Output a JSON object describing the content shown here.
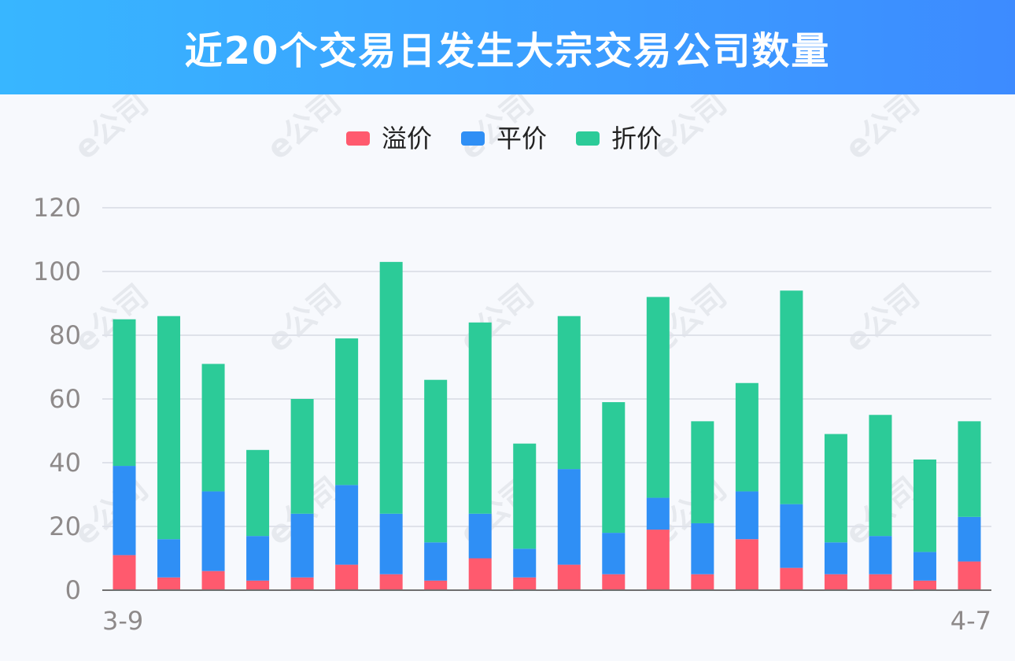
{
  "header": {
    "title": "近20个交易日发生大宗交易公司数量"
  },
  "colors": {
    "premium": "#ff5a6e",
    "par": "#2f8ff5",
    "discount": "#2ccb98",
    "header_start": "#38b6ff",
    "header_end": "#3d8bff"
  },
  "chart_data": {
    "type": "bar",
    "stacked": true,
    "title": "近20个交易日发生大宗交易公司数量",
    "x_tick_labels": [
      "3-9",
      "4-7"
    ],
    "categories": [
      "3-9",
      "",
      "",
      "",
      "",
      "",
      "",
      "",
      "",
      "",
      "",
      "",
      "",
      "",
      "",
      "",
      "",
      "",
      "",
      "4-7"
    ],
    "ylim": [
      0,
      120
    ],
    "yticks": [
      0,
      20,
      40,
      60,
      80,
      100,
      120
    ],
    "grid": true,
    "legend_position": "top-center",
    "series": [
      {
        "name": "溢价",
        "color": "#ff5a6e",
        "values": [
          11,
          4,
          6,
          3,
          4,
          8,
          5,
          3,
          10,
          4,
          8,
          5,
          19,
          5,
          16,
          7,
          5,
          5,
          3,
          9
        ]
      },
      {
        "name": "平价",
        "color": "#2f8ff5",
        "values": [
          28,
          12,
          25,
          14,
          20,
          25,
          19,
          12,
          14,
          9,
          30,
          13,
          10,
          16,
          15,
          20,
          10,
          12,
          9,
          14
        ]
      },
      {
        "name": "折价",
        "color": "#2ccb98",
        "values": [
          46,
          70,
          40,
          27,
          36,
          46,
          79,
          51,
          60,
          33,
          48,
          41,
          63,
          32,
          34,
          67,
          34,
          38,
          29,
          30
        ]
      }
    ]
  },
  "watermark": {
    "text": "e公司"
  }
}
